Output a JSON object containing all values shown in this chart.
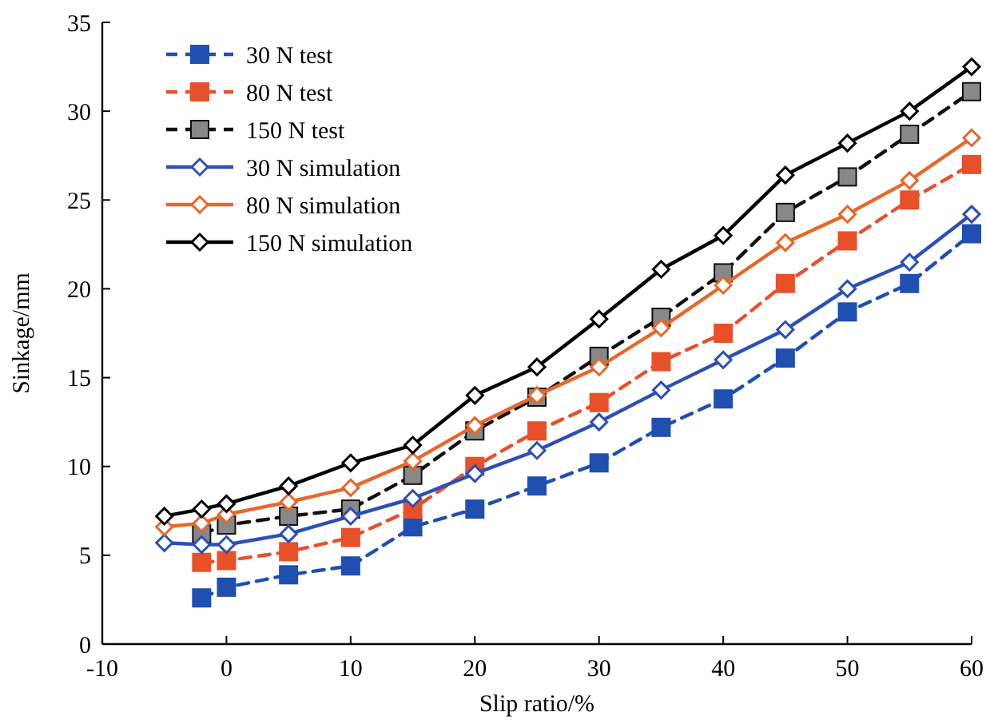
{
  "chart_data": {
    "type": "line",
    "xlabel": "Slip ratio/%",
    "ylabel": "Sinkage/mm",
    "xlim": [
      -10,
      60
    ],
    "xticks": [
      -10,
      0,
      10,
      20,
      30,
      40,
      50,
      60
    ],
    "ylim": [
      0,
      35
    ],
    "yticks": [
      0,
      5,
      10,
      15,
      20,
      25,
      30,
      35
    ],
    "legend": "top left",
    "series": [
      {
        "name": "30 N test",
        "color": "#1f4fb0",
        "line_style": "dashed",
        "marker": "square",
        "x": [
          -2,
          0,
          5,
          10,
          15,
          20,
          25,
          30,
          35,
          40,
          45,
          50,
          55,
          60
        ],
        "values": [
          2.6,
          3.2,
          3.9,
          4.4,
          6.6,
          7.6,
          8.9,
          10.2,
          12.2,
          13.8,
          16.1,
          18.7,
          20.3,
          23.1
        ]
      },
      {
        "name": "80 N test",
        "color": "#e8502a",
        "line_style": "dashed",
        "marker": "square",
        "x": [
          -2,
          0,
          5,
          10,
          15,
          20,
          25,
          30,
          35,
          40,
          45,
          50,
          55,
          60
        ],
        "values": [
          4.6,
          4.7,
          5.2,
          6.0,
          7.6,
          10.0,
          12.0,
          13.6,
          15.9,
          17.5,
          20.3,
          22.7,
          25.0,
          27.0
        ]
      },
      {
        "name": "150 N test",
        "color": "#111111",
        "line_style": "dashed",
        "marker": "square",
        "x": [
          -2,
          0,
          5,
          10,
          15,
          20,
          25,
          30,
          35,
          40,
          45,
          50,
          55,
          60
        ],
        "values": [
          6.2,
          6.7,
          7.2,
          7.6,
          9.5,
          12.0,
          13.9,
          16.2,
          18.4,
          20.9,
          24.3,
          26.3,
          28.7,
          31.1
        ]
      },
      {
        "name": "30 N simulation",
        "color": "#2d4fb5",
        "line_style": "solid",
        "marker": "diamond",
        "x": [
          -5,
          -2,
          0,
          5,
          10,
          15,
          20,
          25,
          30,
          35,
          40,
          45,
          50,
          55,
          60
        ],
        "values": [
          5.7,
          5.6,
          5.6,
          6.2,
          7.2,
          8.2,
          9.6,
          10.9,
          12.5,
          14.3,
          16.0,
          17.7,
          20.0,
          21.5,
          24.2
        ]
      },
      {
        "name": "80 N simulation",
        "color": "#e8672a",
        "line_style": "solid",
        "marker": "diamond",
        "x": [
          -5,
          -2,
          0,
          5,
          10,
          15,
          20,
          25,
          30,
          35,
          40,
          45,
          50,
          55,
          60
        ],
        "values": [
          6.6,
          6.8,
          7.3,
          8.0,
          8.8,
          10.3,
          12.3,
          14.0,
          15.6,
          17.8,
          20.2,
          22.6,
          24.2,
          26.1,
          28.5
        ]
      },
      {
        "name": "150 N simulation",
        "color": "#000000",
        "line_style": "solid",
        "marker": "diamond",
        "x": [
          -5,
          -2,
          0,
          5,
          10,
          15,
          20,
          25,
          30,
          35,
          40,
          45,
          50,
          55,
          60
        ],
        "values": [
          7.2,
          7.6,
          7.9,
          8.9,
          10.2,
          11.2,
          14.0,
          15.6,
          18.3,
          21.1,
          23.0,
          26.4,
          28.2,
          30.0,
          32.5
        ]
      }
    ]
  }
}
